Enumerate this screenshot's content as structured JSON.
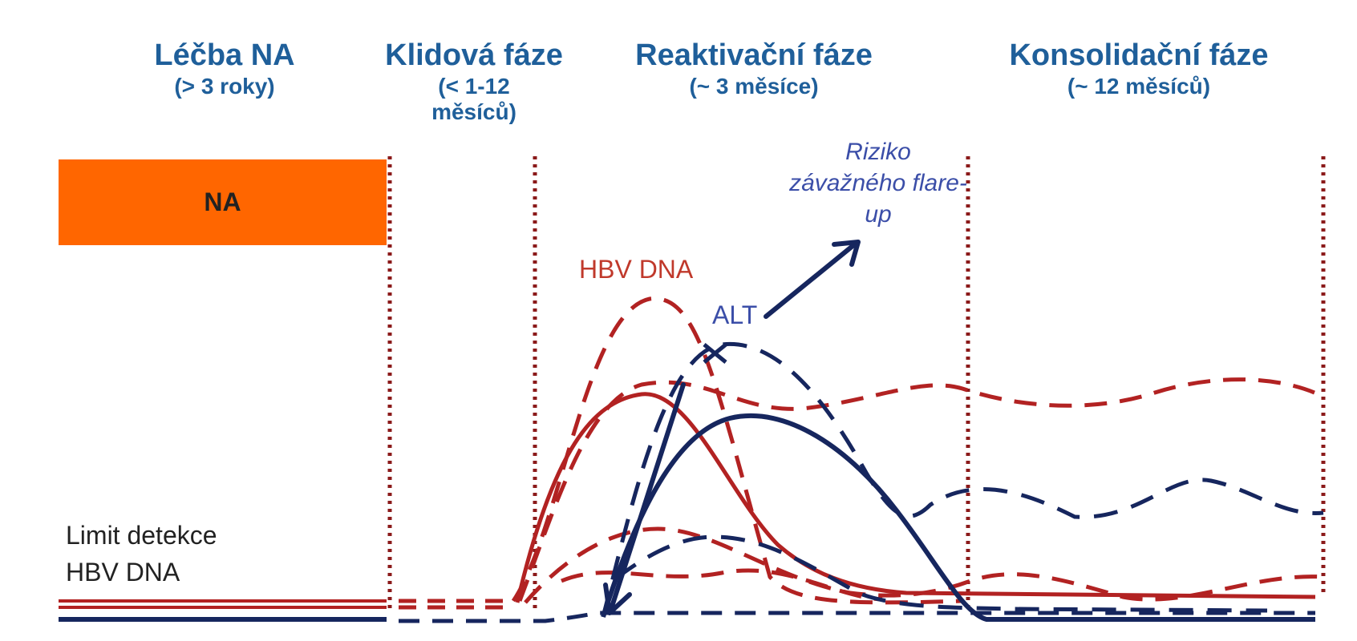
{
  "phases": [
    {
      "title": "Léčba NA",
      "subtitle": "(> 3 roky)"
    },
    {
      "title": "Klidová fáze",
      "subtitle": "(< 1-12 měsíců)"
    },
    {
      "title": "Reaktivační fáze",
      "subtitle": "(~ 3 měsíce)"
    },
    {
      "title": "Konsolidační fáze",
      "subtitle": "(~ 12 měsíců)"
    }
  ],
  "na_box": {
    "label": "NA"
  },
  "labels": {
    "hbv_dna": "HBV DNA",
    "alt": "ALT",
    "risk": "Riziko závažného flare-up",
    "limit_line1": "Limit detekce",
    "limit_line2": "HBV DNA"
  },
  "colors": {
    "hbv": "#b22222",
    "alt": "#16265e",
    "divider": "#8b1a1a",
    "phase_title": "#1f5f9a",
    "na_box": "#ff6600"
  }
}
